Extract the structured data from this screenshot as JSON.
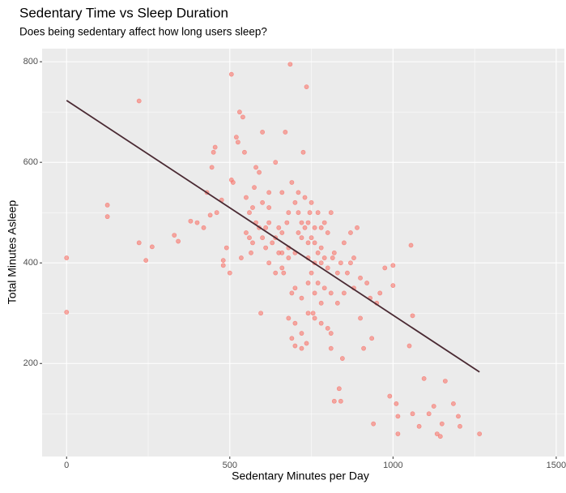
{
  "chart_data": {
    "type": "scatter",
    "title": "Sedentary Time vs Sleep Duration",
    "subtitle": "Does being sedentary affect how long users sleep?",
    "x_label": "Sedentary Minutes per Day",
    "y_label": "Total Minutes Asleep",
    "xlim": [
      -75,
      1525
    ],
    "ylim": [
      15,
      826
    ],
    "xticks": [
      0,
      500,
      1000,
      1500
    ],
    "yticks": [
      200,
      400,
      600,
      800
    ],
    "x_minor_grid": [
      250,
      750,
      1250
    ],
    "y_minor_grid": [
      100,
      300,
      500,
      700
    ],
    "grid": true,
    "points": {
      "color": "#f8766d",
      "x": [
        0,
        0,
        125,
        125,
        222,
        222,
        243,
        262,
        330,
        342,
        380,
        400,
        420,
        430,
        440,
        445,
        450,
        455,
        460,
        475,
        480,
        480,
        490,
        505,
        500,
        505,
        510,
        520,
        525,
        530,
        535,
        540,
        545,
        550,
        560,
        565,
        570,
        575,
        580,
        590,
        595,
        600,
        610,
        620,
        630,
        640,
        650,
        660,
        665,
        670,
        675,
        680,
        685,
        690,
        700,
        710,
        720,
        725,
        735,
        735,
        740,
        745,
        750,
        755,
        760,
        770,
        780,
        790,
        800,
        810,
        815,
        820,
        830,
        835,
        840,
        845,
        850,
        860,
        870,
        880,
        890,
        900,
        910,
        930,
        935,
        940,
        950,
        975,
        990,
        1000,
        1000,
        1010,
        1015,
        1015,
        1050,
        1055,
        1060,
        1060,
        1080,
        1095,
        1110,
        1125,
        1135,
        1145,
        1150,
        1160,
        1185,
        1200,
        1205,
        1265,
        600,
        620,
        650,
        680,
        700,
        720,
        740,
        760,
        780,
        800,
        820,
        840,
        620,
        640,
        660,
        680,
        700,
        720,
        740,
        760,
        780,
        800,
        600,
        620,
        660,
        690,
        710,
        730,
        750,
        770,
        790,
        810,
        700,
        720,
        740,
        760,
        780,
        690,
        710,
        730,
        750,
        770,
        790,
        680,
        660,
        640,
        610,
        590,
        570,
        580,
        560,
        550,
        850,
        870,
        880,
        900,
        920,
        960,
        830,
        810,
        760,
        740,
        700,
        720,
        780,
        810
      ],
      "values": [
        410,
        302,
        515,
        492,
        722,
        440,
        405,
        432,
        455,
        443,
        483,
        480,
        470,
        540,
        495,
        590,
        620,
        630,
        500,
        525,
        405,
        395,
        430,
        775,
        380,
        565,
        560,
        650,
        640,
        700,
        410,
        690,
        620,
        460,
        500,
        420,
        510,
        550,
        590,
        580,
        300,
        660,
        470,
        510,
        440,
        600,
        420,
        390,
        380,
        660,
        480,
        290,
        795,
        250,
        235,
        540,
        230,
        620,
        750,
        240,
        480,
        500,
        380,
        300,
        440,
        360,
        400,
        350,
        270,
        260,
        410,
        125,
        320,
        150,
        125,
        210,
        440,
        380,
        460,
        350,
        470,
        290,
        230,
        330,
        250,
        80,
        320,
        390,
        135,
        355,
        395,
        120,
        95,
        60,
        235,
        435,
        295,
        100,
        75,
        170,
        100,
        115,
        60,
        55,
        80,
        165,
        120,
        95,
        75,
        60,
        450,
        480,
        470,
        430,
        420,
        450,
        410,
        470,
        430,
        460,
        420,
        400,
        400,
        380,
        460,
        500,
        520,
        480,
        440,
        400,
        470,
        390,
        520,
        540,
        540,
        560,
        500,
        530,
        520,
        500,
        480,
        500,
        350,
        330,
        360,
        340,
        320,
        340,
        460,
        470,
        450,
        420,
        410,
        410,
        420,
        450,
        430,
        470,
        440,
        480,
        450,
        530,
        340,
        400,
        410,
        370,
        360,
        340,
        380,
        340,
        290,
        300,
        280,
        260,
        280,
        230
      ]
    },
    "trend": {
      "color": "#4a2a33",
      "x": [
        0,
        1265
      ],
      "values": [
        723,
        183
      ]
    }
  }
}
